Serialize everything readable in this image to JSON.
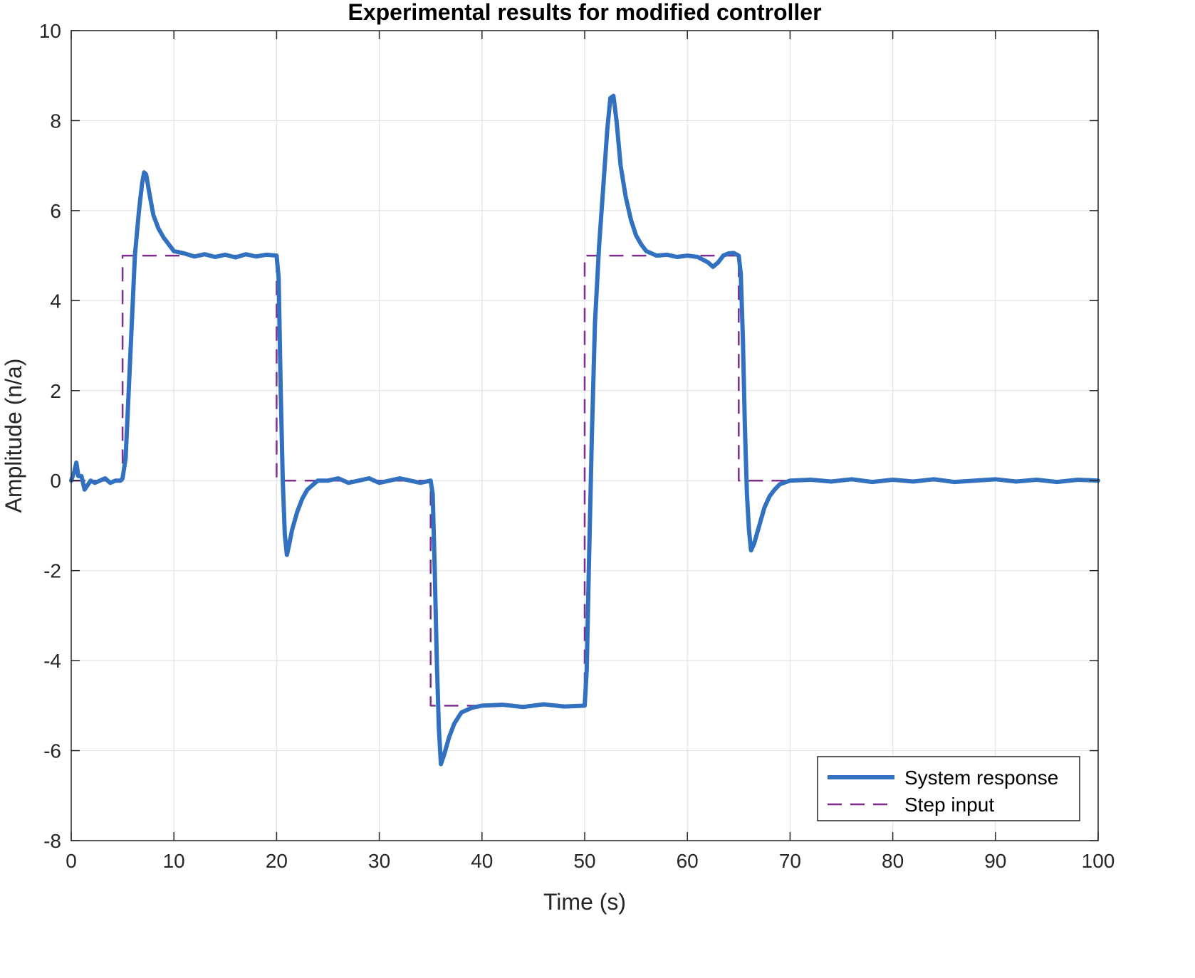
{
  "chart_data": {
    "type": "line",
    "title": "Experimental results for modified controller",
    "xlabel": "Time (s)",
    "ylabel": "Amplitude (n/a)",
    "xlim": [
      0,
      100
    ],
    "ylim": [
      -8,
      10
    ],
    "xticks": [
      0,
      10,
      20,
      30,
      40,
      50,
      60,
      70,
      80,
      90,
      100
    ],
    "yticks": [
      -8,
      -6,
      -4,
      -2,
      0,
      2,
      4,
      6,
      8,
      10
    ],
    "grid": true,
    "legend_position": "bottom-right",
    "series": [
      {
        "name": "System response",
        "style": "solid",
        "color": "#3171BF",
        "x": [
          0,
          0.3,
          0.5,
          0.7,
          1.0,
          1.3,
          1.6,
          1.9,
          2.3,
          2.8,
          3.3,
          3.8,
          4.3,
          4.8,
          5.0,
          5.3,
          5.6,
          5.9,
          6.2,
          6.6,
          6.9,
          7.1,
          7.3,
          7.6,
          8.0,
          8.5,
          9.0,
          9.5,
          10.0,
          11.0,
          12.0,
          13.0,
          14.0,
          15.0,
          16.0,
          17.0,
          18.0,
          19.0,
          20.0,
          20.2,
          20.4,
          20.6,
          20.8,
          21.0,
          21.2,
          21.5,
          22.0,
          22.5,
          23.0,
          24.0,
          25.0,
          26.0,
          27.0,
          28.0,
          29.0,
          30.0,
          31.0,
          32.0,
          33.0,
          34.0,
          35.0,
          35.2,
          35.4,
          35.6,
          35.8,
          36.0,
          36.3,
          36.8,
          37.3,
          38.0,
          39.0,
          40.0,
          42.0,
          44.0,
          46.0,
          48.0,
          50.0,
          50.2,
          50.4,
          50.7,
          51.0,
          51.4,
          51.8,
          52.2,
          52.5,
          52.8,
          53.1,
          53.5,
          54.0,
          54.5,
          55.0,
          55.5,
          56.0,
          57.0,
          58.0,
          59.0,
          60.0,
          61.0,
          62.0,
          62.5,
          63.0,
          63.5,
          64.0,
          64.5,
          65.0,
          65.2,
          65.4,
          65.6,
          65.8,
          66.0,
          66.2,
          66.5,
          67.0,
          67.5,
          68.0,
          68.5,
          69.0,
          70.0,
          72.0,
          74.0,
          76.0,
          78.0,
          80.0,
          82.0,
          84.0,
          86.0,
          88.0,
          90.0,
          92.0,
          94.0,
          96.0,
          98.0,
          100.0
        ],
        "y": [
          0,
          0.2,
          0.4,
          0.1,
          0.1,
          -0.2,
          -0.1,
          0,
          -0.05,
          0,
          0.05,
          -0.05,
          0,
          0,
          0.05,
          0.5,
          2.0,
          3.5,
          5.0,
          6.0,
          6.6,
          6.85,
          6.8,
          6.4,
          5.9,
          5.6,
          5.4,
          5.25,
          5.1,
          5.05,
          4.98,
          5.03,
          4.97,
          5.02,
          4.96,
          5.03,
          4.98,
          5.02,
          5.0,
          4.5,
          2.0,
          0,
          -1.2,
          -1.65,
          -1.45,
          -1.1,
          -0.7,
          -0.4,
          -0.2,
          0,
          0,
          0.05,
          -0.05,
          0,
          0.05,
          -0.05,
          0,
          0.05,
          0,
          -0.05,
          0,
          -0.3,
          -2.0,
          -4.0,
          -5.5,
          -6.3,
          -6.1,
          -5.7,
          -5.4,
          -5.15,
          -5.05,
          -5.0,
          -4.98,
          -5.03,
          -4.97,
          -5.02,
          -5.0,
          -4.2,
          -2.0,
          1.0,
          3.5,
          5.2,
          6.5,
          7.8,
          8.5,
          8.55,
          8.0,
          7.0,
          6.3,
          5.8,
          5.45,
          5.25,
          5.1,
          5.0,
          5.02,
          4.97,
          5.0,
          4.97,
          4.85,
          4.75,
          4.85,
          5.0,
          5.05,
          5.06,
          5.0,
          4.6,
          3.2,
          1.2,
          -0.3,
          -1.1,
          -1.55,
          -1.4,
          -1.0,
          -0.6,
          -0.35,
          -0.2,
          -0.08,
          0,
          0.02,
          -0.02,
          0.03,
          -0.03,
          0.02,
          -0.02,
          0.03,
          -0.03,
          0,
          0.03,
          -0.02,
          0.02,
          -0.03,
          0.02,
          0
        ]
      },
      {
        "name": "Step input",
        "style": "dashed",
        "color": "#7E2F8E",
        "x": [
          0,
          5,
          5,
          20,
          20,
          35,
          35,
          50,
          50,
          65,
          65,
          100
        ],
        "y": [
          0,
          0,
          5,
          5,
          0,
          0,
          -5,
          -5,
          5,
          5,
          0,
          0
        ]
      }
    ]
  }
}
